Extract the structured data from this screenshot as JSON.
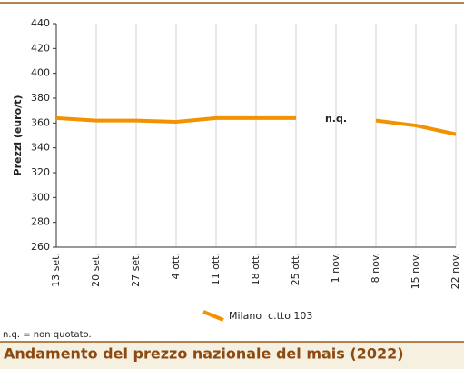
{
  "chart_data": {
    "type": "line",
    "title": "Andamento del prezzo nazionale del mais (2022)",
    "y_label": "Prezzi (euro/t)",
    "categories": [
      "13 set.",
      "20 set.",
      "27 set.",
      "4 ott.",
      "11 ott.",
      "18 ott.",
      "25 ott.",
      "1 nov.",
      "8 nov.",
      "15 nov.",
      "22 nov."
    ],
    "series": [
      {
        "name": "Milano  c.tto 103",
        "color": "#f39200",
        "values": [
          364,
          362,
          362,
          361,
          364,
          364,
          364,
          null,
          362,
          358,
          351
        ]
      }
    ],
    "annotation": "n.q.",
    "note": "n.q. = non quotato.",
    "ylim": [
      260,
      440
    ],
    "yticks": [
      260,
      280,
      300,
      320,
      340,
      360,
      380,
      400,
      420,
      440
    ],
    "grid": "x"
  }
}
